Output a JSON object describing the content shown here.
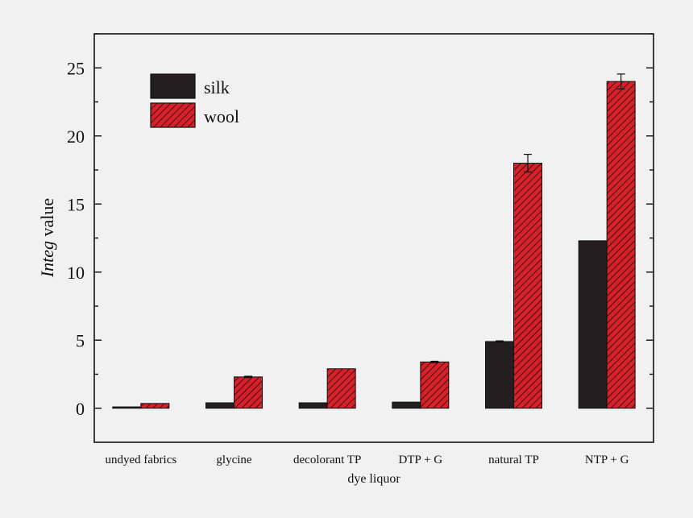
{
  "chart_data": {
    "type": "bar",
    "categories": [
      "undyed fabrics",
      "glycine",
      "decolorant TP",
      "DTP + G",
      "natural TP",
      "NTP + G"
    ],
    "series": [
      {
        "name": "silk",
        "values": [
          0.1,
          0.4,
          0.4,
          0.45,
          4.9,
          12.3
        ],
        "errors": [
          0,
          0,
          0,
          0,
          0.05,
          0
        ],
        "color": "#231f20"
      },
      {
        "name": "wool",
        "values": [
          0.35,
          2.3,
          2.9,
          3.4,
          18.0,
          24.0
        ],
        "errors": [
          0,
          0.05,
          0,
          0.05,
          0.65,
          0.55
        ],
        "color": "#d8202a"
      }
    ],
    "title": "",
    "xlabel": "dye liquor",
    "ylabel_italic": "Integ",
    "ylabel_rest": " value",
    "ylim": [
      -2.5,
      27.5
    ],
    "yticks": [
      0,
      5,
      10,
      15,
      20,
      25
    ],
    "grid": false,
    "legend_position": "top-left"
  }
}
